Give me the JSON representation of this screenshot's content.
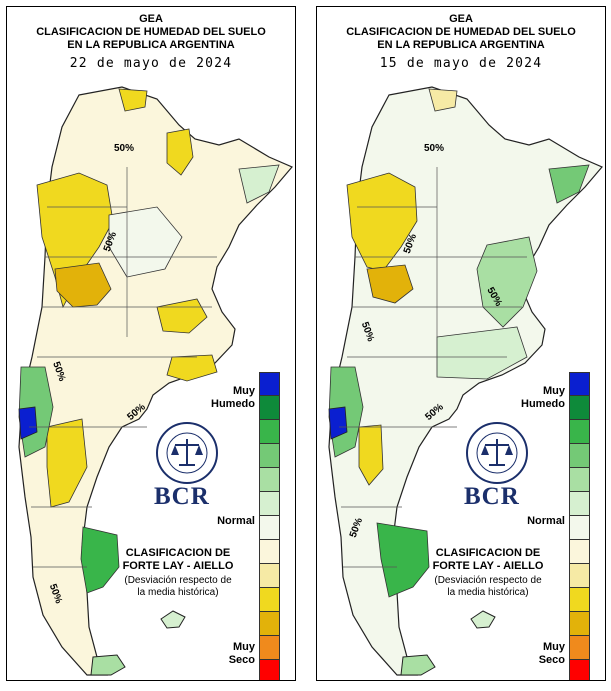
{
  "panels": [
    {
      "header": {
        "org": "GEA",
        "line1": "CLASIFICACION DE HUMEDAD DEL SUELO",
        "line2": "EN LA REPUBLICA ARGENTINA",
        "date": "22 de mayo de 2024"
      },
      "isoline_label": "50%"
    },
    {
      "header": {
        "org": "GEA",
        "line1": "CLASIFICACION DE HUMEDAD DEL SUELO",
        "line2": "EN LA REPUBLICA ARGENTINA",
        "date": "15 de mayo de 2024"
      },
      "isoline_label": "50%"
    }
  ],
  "legend": {
    "top_label_1": "Muy",
    "top_label_2": "Humedo",
    "middle_label": "Normal",
    "bottom_label_1": "Muy",
    "bottom_label_2": "Seco",
    "colors": [
      "#0a1fd0",
      "#0e8a3a",
      "#39b54a",
      "#74c976",
      "#a9dfa3",
      "#d6f0d0",
      "#f3f8ec",
      "#fbf6dc",
      "#f6eaa5",
      "#f0d91f",
      "#e2b20a",
      "#f08a1c",
      "#ff0000"
    ]
  },
  "classification": {
    "title_1": "CLASIFICACION DE",
    "title_2": "FORTE LAY - AIELLO",
    "note_1": "(Desviación respecto de",
    "note_2": "la media histórica)"
  },
  "logo": {
    "name": "BCR",
    "seal_text": "BOLSA DE COMERCIO DE ROSARIO"
  }
}
